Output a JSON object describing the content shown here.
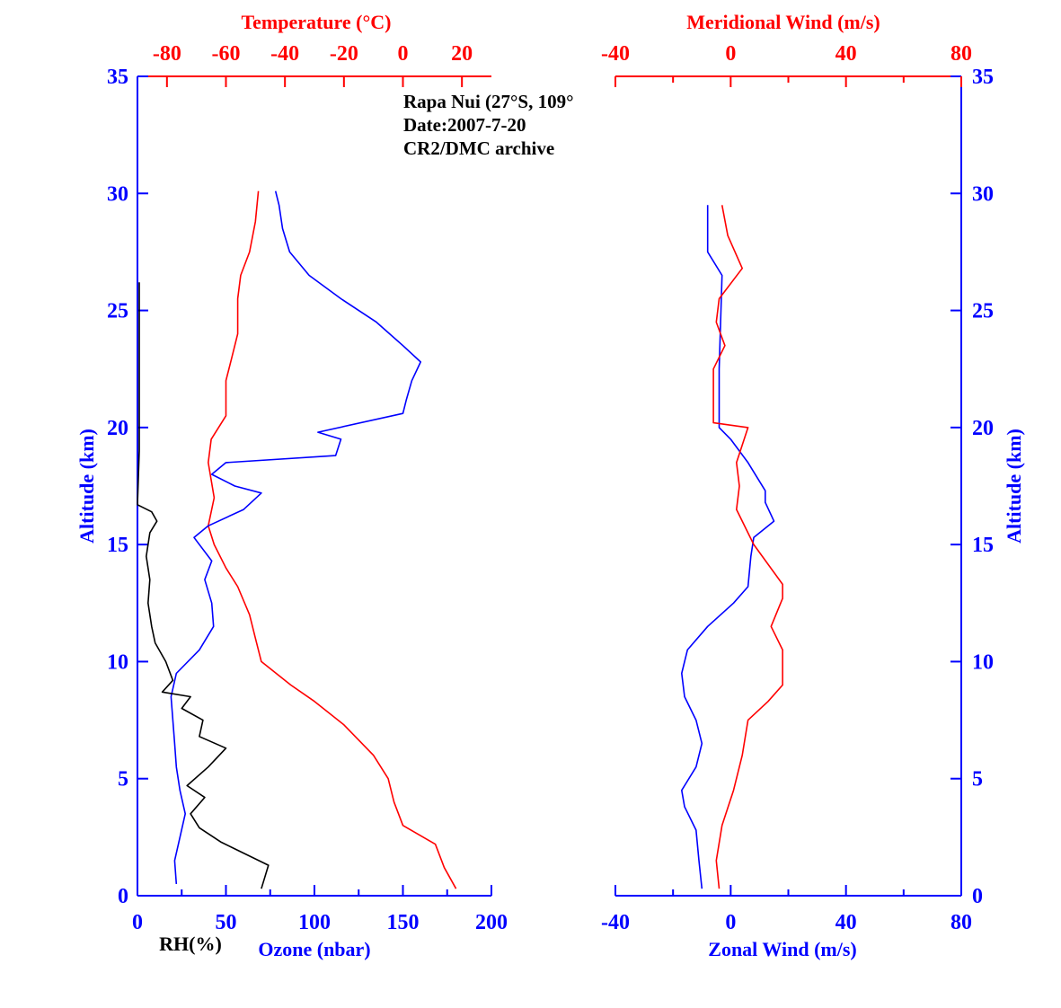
{
  "chart_data": [
    {
      "type": "line",
      "panel": "left",
      "annotation": [
        "Rapa Nui (27°S, 109°",
        "Date:2007-7-20",
        "CR2/DMC archive"
      ],
      "ylabel": "Altitude (km)",
      "ylim": [
        0,
        35
      ],
      "yticks": [
        "0",
        "5",
        "10",
        "15",
        "20",
        "25",
        "30",
        "35"
      ],
      "x_bottom": {
        "label": "Ozone (nbar)",
        "lim": [
          0,
          200
        ],
        "ticks": [
          "0",
          "50",
          "100",
          "150",
          "200"
        ]
      },
      "x_top": {
        "label": "Temperature (°C)",
        "lim": [
          -90,
          30
        ],
        "ticks": [
          "-80",
          "-60",
          "-40",
          "-20",
          "0",
          "20"
        ]
      },
      "x_bottom_extra_label": "RH(%)",
      "series": [
        {
          "axis": "top",
          "color": "#ff0000",
          "points": [
            [
              18,
              0.3
            ],
            [
              14,
              1.2
            ],
            [
              11,
              2.2
            ],
            [
              0,
              3
            ],
            [
              -3,
              4
            ],
            [
              -5,
              5
            ],
            [
              -10,
              6
            ],
            [
              -20,
              7.3
            ],
            [
              -30,
              8.3
            ],
            [
              -38,
              9
            ],
            [
              -48,
              10
            ],
            [
              -50,
              11
            ],
            [
              -52,
              12
            ],
            [
              -56,
              13.2
            ],
            [
              -60,
              14
            ],
            [
              -64,
              15
            ],
            [
              -66,
              15.8
            ],
            [
              -64,
              17
            ],
            [
              -66,
              18.5
            ],
            [
              -65,
              19.5
            ],
            [
              -60,
              20.5
            ],
            [
              -60,
              22
            ],
            [
              -58,
              23
            ],
            [
              -56,
              24
            ],
            [
              -56,
              25.5
            ],
            [
              -55,
              26.5
            ],
            [
              -52,
              27.5
            ],
            [
              -50,
              28.8
            ],
            [
              -49,
              30.1
            ]
          ]
        },
        {
          "axis": "bottom",
          "color": "#0000ff",
          "points": [
            [
              22,
              0.5
            ],
            [
              21,
              1.5
            ],
            [
              24,
              2.5
            ],
            [
              27,
              3.5
            ],
            [
              24,
              4.5
            ],
            [
              22,
              5.5
            ],
            [
              21,
              6.5
            ],
            [
              20,
              7.5
            ],
            [
              19,
              8.5
            ],
            [
              22,
              9.5
            ],
            [
              35,
              10.5
            ],
            [
              43,
              11.5
            ],
            [
              42,
              12.5
            ],
            [
              38,
              13.5
            ],
            [
              42,
              14.3
            ],
            [
              32,
              15.3
            ],
            [
              40,
              15.8
            ],
            [
              60,
              16.5
            ],
            [
              70,
              17.2
            ],
            [
              55,
              17.5
            ],
            [
              42,
              18
            ],
            [
              50,
              18.5
            ],
            [
              112,
              18.8
            ],
            [
              115,
              19.5
            ],
            [
              102,
              19.8
            ],
            [
              150,
              20.6
            ],
            [
              152,
              21.2
            ],
            [
              155,
              22
            ],
            [
              160,
              22.8
            ],
            [
              150,
              23.5
            ],
            [
              135,
              24.5
            ],
            [
              115,
              25.5
            ],
            [
              97,
              26.5
            ],
            [
              86,
              27.5
            ],
            [
              82,
              28.5
            ],
            [
              80,
              29.5
            ],
            [
              78,
              30.1
            ]
          ]
        },
        {
          "axis": "rh",
          "color": "#000000",
          "points": [
            [
              70,
              0.3
            ],
            [
              74,
              1.3
            ],
            [
              55,
              2
            ],
            [
              47,
              2.3
            ],
            [
              35,
              2.9
            ],
            [
              30,
              3.5
            ],
            [
              38,
              4.2
            ],
            [
              28,
              4.7
            ],
            [
              40,
              5.5
            ],
            [
              50,
              6.3
            ],
            [
              35,
              6.8
            ],
            [
              37,
              7.5
            ],
            [
              25,
              8
            ],
            [
              30,
              8.5
            ],
            [
              14,
              8.7
            ],
            [
              20,
              9.2
            ],
            [
              16,
              10
            ],
            [
              10,
              10.8
            ],
            [
              8,
              11.5
            ],
            [
              6,
              12.5
            ],
            [
              7,
              13.5
            ],
            [
              5,
              14.5
            ],
            [
              7,
              15.5
            ],
            [
              11,
              16
            ],
            [
              8,
              16.4
            ],
            [
              0,
              16.7
            ],
            [
              1,
              19
            ],
            [
              1,
              26.2
            ]
          ]
        }
      ]
    },
    {
      "type": "line",
      "panel": "right",
      "ylabel": "Altitude (km)",
      "ylim": [
        0,
        35
      ],
      "yticks": [
        "0",
        "5",
        "10",
        "15",
        "20",
        "25",
        "30",
        "35"
      ],
      "x_bottom": {
        "label": "Zonal Wind (m/s)",
        "lim": [
          -40,
          80
        ],
        "ticks": [
          "-40",
          "0",
          "40",
          "80"
        ]
      },
      "x_top": {
        "label": "Meridional Wind (m/s)",
        "lim": [
          -40,
          80
        ],
        "ticks": [
          "-40",
          "0",
          "40",
          "80"
        ]
      },
      "series": [
        {
          "axis": "bottom",
          "name": "Zonal Wind",
          "color": "#0000ff",
          "points": [
            [
              -10,
              0.3
            ],
            [
              -11,
              1.5
            ],
            [
              -12,
              2.8
            ],
            [
              -16,
              3.8
            ],
            [
              -17,
              4.5
            ],
            [
              -12,
              5.5
            ],
            [
              -10,
              6.5
            ],
            [
              -12,
              7.5
            ],
            [
              -16,
              8.5
            ],
            [
              -17,
              9.5
            ],
            [
              -15,
              10.5
            ],
            [
              -8,
              11.5
            ],
            [
              1,
              12.5
            ],
            [
              6,
              13.2
            ],
            [
              7,
              14.5
            ],
            [
              8,
              15.3
            ],
            [
              15,
              16
            ],
            [
              12,
              16.8
            ],
            [
              12,
              17.3
            ],
            [
              6,
              18.5
            ],
            [
              0,
              19.5
            ],
            [
              -4,
              20
            ],
            [
              -4,
              22.5
            ],
            [
              -3,
              26.5
            ],
            [
              -8,
              27.5
            ],
            [
              -8,
              29.5
            ]
          ]
        },
        {
          "axis": "top",
          "name": "Meridional Wind",
          "color": "#ff0000",
          "points": [
            [
              -4,
              0.3
            ],
            [
              -5,
              1.5
            ],
            [
              -3,
              3
            ],
            [
              1,
              4.5
            ],
            [
              4,
              6
            ],
            [
              6,
              7.5
            ],
            [
              13,
              8.3
            ],
            [
              18,
              9
            ],
            [
              18,
              10.5
            ],
            [
              14,
              11.5
            ],
            [
              18,
              12.7
            ],
            [
              18,
              13.3
            ],
            [
              8,
              15
            ],
            [
              2,
              16.5
            ],
            [
              3,
              17.5
            ],
            [
              2,
              18.5
            ],
            [
              6,
              20
            ],
            [
              -6,
              20.2
            ],
            [
              -6,
              22.5
            ],
            [
              -2,
              23.5
            ],
            [
              -5,
              24.5
            ],
            [
              -4,
              25.5
            ],
            [
              4,
              26.8
            ],
            [
              -1,
              28.2
            ],
            [
              -3,
              29.5
            ]
          ]
        }
      ]
    }
  ]
}
